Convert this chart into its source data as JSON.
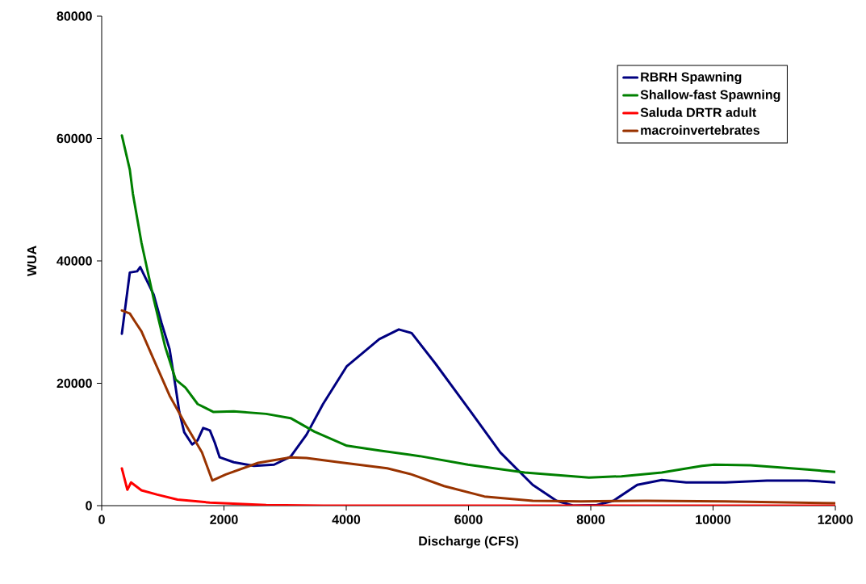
{
  "chart_data": {
    "type": "line",
    "xlabel": "Discharge (CFS)",
    "ylabel": "WUA",
    "xlim": [
      0,
      12000
    ],
    "ylim": [
      0,
      80000
    ],
    "xticks": [
      0,
      2000,
      4000,
      6000,
      8000,
      10000,
      12000
    ],
    "yticks": [
      0,
      20000,
      40000,
      60000,
      80000
    ],
    "grid": false,
    "legend": "top right",
    "marker": "none",
    "line_style": "solid",
    "series": [
      {
        "name": "RBRH Spawning",
        "color": "#000080",
        "x": [
          330,
          460,
          580,
          630,
          850,
          980,
          1110,
          1210,
          1270,
          1350,
          1480,
          1570,
          1660,
          1770,
          1850,
          1930,
          2160,
          2490,
          2820,
          3090,
          3350,
          3620,
          4010,
          4540,
          4860,
          5070,
          5460,
          5990,
          6520,
          7050,
          7440,
          7710,
          8100,
          8370,
          8760,
          9160,
          9560,
          10200,
          10880,
          11540,
          12000
        ],
        "values": [
          28100,
          38100,
          38300,
          39000,
          34500,
          29800,
          25600,
          19300,
          15300,
          12000,
          10000,
          10700,
          12700,
          12300,
          10300,
          7900,
          7100,
          6500,
          6700,
          8000,
          11600,
          16600,
          22800,
          27200,
          28800,
          28200,
          23200,
          16000,
          8700,
          3400,
          800,
          0,
          100,
          800,
          3400,
          4200,
          3800,
          3800,
          4100,
          4100,
          3800
        ]
      },
      {
        "name": "Shallow-fast Spawning",
        "color": "#008000",
        "x": [
          330,
          460,
          510,
          650,
          850,
          1040,
          1210,
          1370,
          1570,
          1830,
          2160,
          2690,
          3090,
          3480,
          4010,
          4540,
          5200,
          5990,
          6920,
          7970,
          8500,
          9160,
          9820,
          10020,
          10610,
          11540,
          12000
        ],
        "values": [
          60500,
          54900,
          51000,
          43000,
          33800,
          25900,
          20600,
          19300,
          16600,
          15300,
          15400,
          15000,
          14300,
          12100,
          9800,
          9000,
          8100,
          6700,
          5400,
          4600,
          4800,
          5400,
          6500,
          6700,
          6600,
          5900,
          5500
        ]
      },
      {
        "name": "Saluda DRTR adult",
        "color": "#ff0000",
        "x": [
          330,
          420,
          480,
          650,
          910,
          1240,
          1770,
          2690,
          3620,
          12000
        ],
        "values": [
          6100,
          2600,
          3800,
          2500,
          1800,
          1000,
          500,
          100,
          0,
          0
        ]
      },
      {
        "name": "macroinvertebrates",
        "color": "#993300",
        "x": [
          330,
          460,
          550,
          650,
          850,
          1110,
          1370,
          1640,
          1810,
          2030,
          2560,
          3090,
          3350,
          3880,
          4670,
          5070,
          5600,
          6260,
          7050,
          7840,
          8900,
          10200,
          12000
        ],
        "values": [
          31900,
          31400,
          30000,
          28500,
          23900,
          18000,
          13300,
          8700,
          4100,
          5100,
          7000,
          7900,
          7800,
          7100,
          6100,
          5100,
          3200,
          1500,
          800,
          700,
          800,
          700,
          400
        ]
      }
    ]
  }
}
